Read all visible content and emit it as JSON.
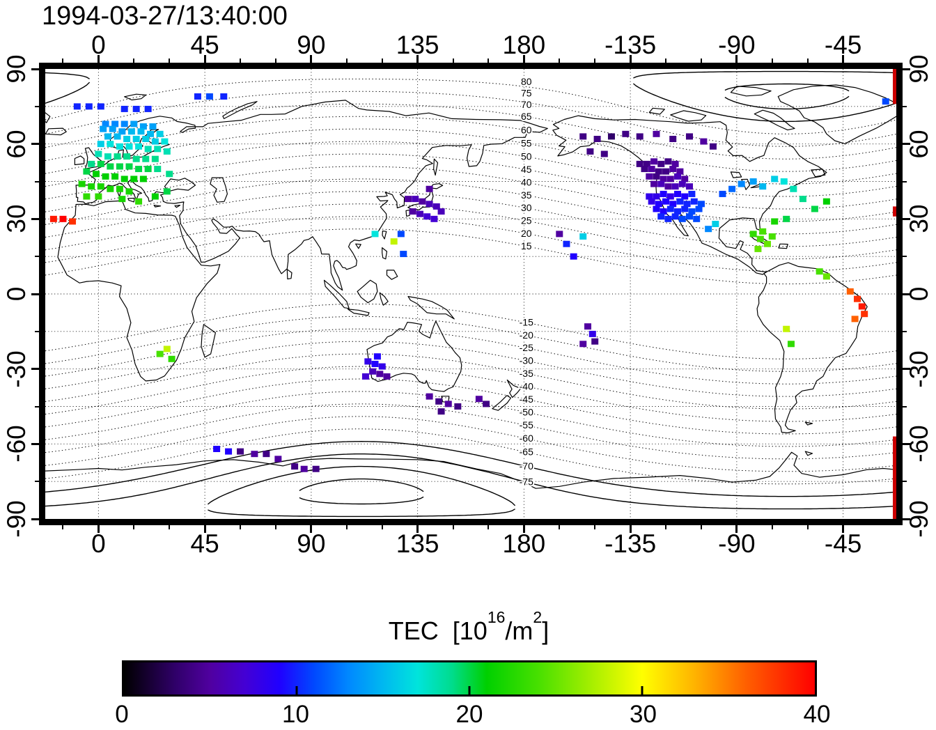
{
  "window": {
    "title": "1994-03-27/13:40:00"
  },
  "map_axes": {
    "lon_range": [
      -22.5,
      337.5
    ],
    "lat_range": [
      -90,
      90
    ],
    "lon_tick_labels": [
      "0",
      "45",
      "90",
      "135",
      "180",
      "-135",
      "-90",
      "-45"
    ],
    "lon_tick_values": [
      0,
      45,
      90,
      135,
      180,
      225,
      270,
      315
    ],
    "lat_tick_labels": [
      "90",
      "60",
      "30",
      "0",
      "-30",
      "-60",
      "-90"
    ],
    "lat_tick_values": [
      90,
      60,
      30,
      0,
      -30,
      -60,
      -90
    ],
    "grid_lons": [
      0,
      45,
      90,
      135,
      180,
      225,
      270,
      315
    ],
    "grid_lats": [
      75,
      60,
      45,
      30,
      15,
      0,
      -15,
      -30,
      -45,
      -60,
      -75
    ]
  },
  "colorbar": {
    "title": {
      "prefix": "TEC  [10",
      "sup1": "16",
      "mid": "/m",
      "sup2": "2",
      "suffix": "]"
    },
    "tick_labels": [
      "0",
      "10",
      "20",
      "30",
      "40"
    ],
    "tick_values": [
      0,
      10,
      20,
      30,
      40
    ],
    "range": [
      0,
      40
    ],
    "stops": [
      [
        0,
        "#000000"
      ],
      [
        3,
        "#30006a"
      ],
      [
        5,
        "#5000a0"
      ],
      [
        7,
        "#4400d4"
      ],
      [
        9,
        "#2000ff"
      ],
      [
        11,
        "#0048ff"
      ],
      [
        13,
        "#0088ff"
      ],
      [
        15,
        "#00b8f0"
      ],
      [
        17,
        "#00e4dc"
      ],
      [
        19,
        "#00dc8c"
      ],
      [
        21,
        "#00d000"
      ],
      [
        24,
        "#48e000"
      ],
      [
        27,
        "#a4ee00"
      ],
      [
        30,
        "#ffff00"
      ],
      [
        33,
        "#ffb400"
      ],
      [
        36,
        "#ff6000"
      ],
      [
        40,
        "#ff0000"
      ]
    ]
  },
  "chart_data": {
    "type": "scatter",
    "title": "1994-03-27/13:40:00",
    "units": "TEC [10^16/m^2]",
    "projection": "equirectangular world map, lon -22.5..337.5 deg, lat -90..90 deg",
    "colorbar_range": [
      0,
      40
    ],
    "geomagnetic_contours": {
      "pole_lat": 79,
      "pole_lon": 291,
      "levels_min": 15,
      "levels_max": 85,
      "levels_step": 5,
      "label_lon": 181,
      "solid_north_min": 80,
      "solid_south_max": -70
    },
    "edge_marks": [
      [
        90,
        76
      ],
      [
        35,
        31
      ],
      [
        -57,
        -90
      ]
    ],
    "points": [
      [
        3,
        68,
        13
      ],
      [
        7,
        68,
        13
      ],
      [
        11,
        68,
        13
      ],
      [
        15,
        68,
        14
      ],
      [
        19,
        67,
        14
      ],
      [
        23,
        67,
        14
      ],
      [
        2,
        66,
        14
      ],
      [
        6,
        66,
        14
      ],
      [
        10,
        65,
        14
      ],
      [
        14,
        65,
        15
      ],
      [
        18,
        65,
        15
      ],
      [
        22,
        64,
        15
      ],
      [
        26,
        64,
        16
      ],
      [
        4,
        63,
        15
      ],
      [
        8,
        63,
        15
      ],
      [
        12,
        62,
        16
      ],
      [
        16,
        62,
        16
      ],
      [
        20,
        62,
        16
      ],
      [
        24,
        61,
        16
      ],
      [
        28,
        61,
        17
      ],
      [
        1,
        60,
        16
      ],
      [
        5,
        60,
        17
      ],
      [
        9,
        59,
        17
      ],
      [
        13,
        59,
        17
      ],
      [
        17,
        59,
        17
      ],
      [
        21,
        58,
        18
      ],
      [
        25,
        58,
        18
      ],
      [
        29,
        57,
        18
      ],
      [
        0,
        56,
        18
      ],
      [
        4,
        55,
        18
      ],
      [
        8,
        55,
        19
      ],
      [
        12,
        55,
        19
      ],
      [
        16,
        54,
        19
      ],
      [
        20,
        54,
        19
      ],
      [
        24,
        54,
        19
      ],
      [
        -3,
        52,
        19
      ],
      [
        1,
        52,
        20
      ],
      [
        5,
        51,
        20
      ],
      [
        9,
        51,
        20
      ],
      [
        13,
        51,
        20
      ],
      [
        17,
        50,
        20
      ],
      [
        21,
        50,
        20
      ],
      [
        25,
        50,
        19
      ],
      [
        -5,
        49,
        20
      ],
      [
        -1,
        48,
        21
      ],
      [
        3,
        47,
        21
      ],
      [
        7,
        47,
        21
      ],
      [
        11,
        46,
        21
      ],
      [
        15,
        46,
        21
      ],
      [
        19,
        46,
        21
      ],
      [
        -7,
        44,
        22
      ],
      [
        -3,
        43,
        22
      ],
      [
        1,
        43,
        22
      ],
      [
        5,
        42,
        22
      ],
      [
        9,
        42,
        22
      ],
      [
        13,
        41,
        22
      ],
      [
        -5,
        39,
        23
      ],
      [
        0,
        39,
        23
      ],
      [
        10,
        38,
        22
      ],
      [
        17,
        37,
        23
      ],
      [
        24,
        39,
        21
      ],
      [
        29,
        41,
        20
      ],
      [
        30,
        48,
        19
      ],
      [
        -9,
        75,
        10
      ],
      [
        -4,
        75,
        10
      ],
      [
        1,
        75,
        10
      ],
      [
        11,
        74,
        10
      ],
      [
        16,
        74,
        10
      ],
      [
        21,
        74,
        10
      ],
      [
        42,
        79,
        10
      ],
      [
        47,
        79,
        11
      ],
      [
        53,
        79,
        10
      ],
      [
        -19,
        30,
        39
      ],
      [
        -15,
        30,
        40
      ],
      [
        -11,
        29,
        38
      ],
      [
        131,
        38,
        5
      ],
      [
        134,
        38,
        6
      ],
      [
        137,
        37,
        5
      ],
      [
        140,
        36,
        6
      ],
      [
        143,
        35,
        6
      ],
      [
        133,
        33,
        5
      ],
      [
        136,
        32,
        6
      ],
      [
        139,
        31,
        7
      ],
      [
        142,
        30,
        7
      ],
      [
        145,
        33,
        6
      ],
      [
        140,
        42,
        5
      ],
      [
        117,
        24,
        17
      ],
      [
        128,
        24,
        11
      ],
      [
        125,
        21,
        28
      ],
      [
        129,
        16,
        11
      ],
      [
        195,
        24,
        5
      ],
      [
        198,
        20,
        10
      ],
      [
        205,
        23,
        16
      ],
      [
        201,
        15,
        9
      ],
      [
        205,
        63,
        4
      ],
      [
        211,
        62,
        4
      ],
      [
        217,
        63,
        3
      ],
      [
        223,
        64,
        4
      ],
      [
        229,
        63,
        4
      ],
      [
        236,
        64,
        5
      ],
      [
        243,
        62,
        4
      ],
      [
        250,
        63,
        4
      ],
      [
        256,
        61,
        5
      ],
      [
        208,
        57,
        4
      ],
      [
        214,
        56,
        4
      ],
      [
        260,
        59,
        4
      ],
      [
        229,
        52,
        4
      ],
      [
        232,
        52,
        4
      ],
      [
        235,
        53,
        5
      ],
      [
        238,
        52,
        4
      ],
      [
        241,
        53,
        4
      ],
      [
        244,
        52,
        5
      ],
      [
        231,
        50,
        4
      ],
      [
        234,
        50,
        5
      ],
      [
        237,
        49,
        4
      ],
      [
        240,
        49,
        4
      ],
      [
        243,
        50,
        5
      ],
      [
        246,
        49,
        5
      ],
      [
        233,
        47,
        5
      ],
      [
        236,
        47,
        4
      ],
      [
        239,
        46,
        5
      ],
      [
        242,
        46,
        5
      ],
      [
        245,
        47,
        6
      ],
      [
        248,
        46,
        5
      ],
      [
        235,
        44,
        5
      ],
      [
        238,
        44,
        6
      ],
      [
        241,
        43,
        5
      ],
      [
        244,
        43,
        6
      ],
      [
        247,
        44,
        6
      ],
      [
        250,
        43,
        6
      ],
      [
        233,
        39,
        8
      ],
      [
        236,
        39,
        8
      ],
      [
        239,
        40,
        9
      ],
      [
        242,
        39,
        8
      ],
      [
        245,
        40,
        9
      ],
      [
        248,
        39,
        9
      ],
      [
        251,
        40,
        10
      ],
      [
        234,
        37,
        8
      ],
      [
        237,
        36,
        9
      ],
      [
        240,
        37,
        9
      ],
      [
        243,
        36,
        9
      ],
      [
        246,
        37,
        10
      ],
      [
        249,
        36,
        10
      ],
      [
        252,
        37,
        10
      ],
      [
        255,
        36,
        11
      ],
      [
        236,
        34,
        9
      ],
      [
        239,
        33,
        9
      ],
      [
        242,
        34,
        10
      ],
      [
        245,
        33,
        10
      ],
      [
        248,
        34,
        10
      ],
      [
        251,
        33,
        11
      ],
      [
        254,
        34,
        11
      ],
      [
        238,
        31,
        10
      ],
      [
        241,
        30,
        10
      ],
      [
        244,
        31,
        10
      ],
      [
        247,
        30,
        11
      ],
      [
        250,
        31,
        11
      ],
      [
        253,
        30,
        11
      ],
      [
        261,
        28,
        16
      ],
      [
        258,
        26,
        13
      ],
      [
        264,
        40,
        11
      ],
      [
        268,
        42,
        12
      ],
      [
        272,
        44,
        13
      ],
      [
        277,
        45,
        14
      ],
      [
        281,
        43,
        15
      ],
      [
        286,
        46,
        16
      ],
      [
        290,
        45,
        17
      ],
      [
        294,
        42,
        18
      ],
      [
        298,
        38,
        19
      ],
      [
        303,
        34,
        20
      ],
      [
        308,
        37,
        21
      ],
      [
        291,
        30,
        20
      ],
      [
        286,
        29,
        22
      ],
      [
        277,
        24,
        23
      ],
      [
        280,
        22,
        24
      ],
      [
        283,
        20,
        25
      ],
      [
        281,
        25,
        24
      ],
      [
        285,
        23,
        24
      ],
      [
        279,
        18,
        25
      ],
      [
        305,
        9,
        24
      ],
      [
        308,
        7,
        25
      ],
      [
        318,
        1,
        36
      ],
      [
        321,
        -2,
        38
      ],
      [
        323,
        -5,
        39
      ],
      [
        324,
        -8,
        38
      ],
      [
        320,
        -10,
        36
      ],
      [
        291,
        -14,
        28
      ],
      [
        293,
        -20,
        23
      ],
      [
        29,
        -22,
        28
      ],
      [
        31,
        -26,
        23
      ],
      [
        26,
        -24,
        24
      ],
      [
        114,
        -27,
        8
      ],
      [
        117,
        -28,
        9
      ],
      [
        120,
        -29,
        8
      ],
      [
        116,
        -31,
        6
      ],
      [
        119,
        -32,
        5
      ],
      [
        122,
        -33,
        5
      ],
      [
        113,
        -33,
        7
      ],
      [
        118,
        -25,
        9
      ],
      [
        140,
        -41,
        5
      ],
      [
        144,
        -43,
        4
      ],
      [
        148,
        -44,
        5
      ],
      [
        152,
        -45,
        4
      ],
      [
        145,
        -47,
        4
      ],
      [
        161,
        -42,
        5
      ],
      [
        164,
        -44,
        4
      ],
      [
        207,
        -13,
        5
      ],
      [
        209,
        -16,
        8
      ],
      [
        210,
        -19,
        4
      ],
      [
        205,
        -20,
        5
      ],
      [
        50,
        -62,
        9
      ],
      [
        55,
        -63,
        9
      ],
      [
        60,
        -63,
        4
      ],
      [
        66,
        -64,
        5
      ],
      [
        71,
        -64,
        4
      ],
      [
        76,
        -66,
        5
      ],
      [
        83,
        -69,
        4
      ],
      [
        87,
        -70,
        5
      ],
      [
        92,
        -70,
        4
      ],
      [
        333,
        77,
        11
      ]
    ]
  }
}
